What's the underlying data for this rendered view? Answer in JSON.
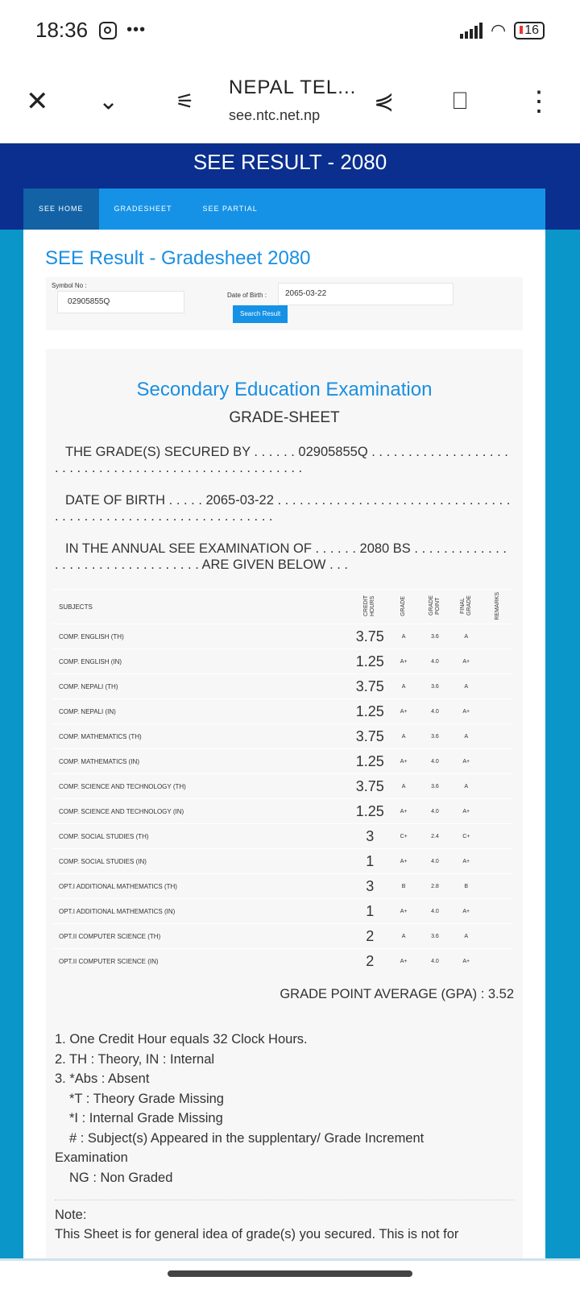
{
  "status_bar": {
    "time": "18:36",
    "battery": "16"
  },
  "browser": {
    "title": "NEPAL TEL...",
    "url": "see.ntc.net.np"
  },
  "site": {
    "title": "SEE RESULT - 2080",
    "nav": [
      "SEE HOME",
      "GRADESHEET",
      "SEE PARTIAL"
    ]
  },
  "page_title": "SEE Result - Gradesheet 2080",
  "form": {
    "symbol_label": "Symbol No :",
    "symbol_value": "02905855Q",
    "dob_label": "Date of Birth :",
    "dob_value": "2065-03-22",
    "search_label": "Search Result"
  },
  "sheet": {
    "heading": "Secondary Education Examination",
    "subheading": "GRADE-SHEET",
    "line1": "THE GRADE(S) SECURED BY . . . . . . 02905855Q . . . . . . . . . . . . . . . . . . . . . . . . . . . . . . . . . . . . . . . . . . . . . . . . . . . . .",
    "line2": "DATE OF BIRTH . . . . . 2065-03-22 . . . . . . . . . . . . . . . . . . . . . . . . . . . . . . . . . . . . . . . . . . . . . . . . . . . . . . . . . . . . . .",
    "line3": "IN THE ANNUAL SEE EXAMINATION OF . . . . . . 2080 BS . . . . . . . . . . . . . . . . . . . . . . . . . . . . . . . . . ARE GIVEN BELOW . . .",
    "columns": [
      "SUBJECTS",
      "CREDIT HOURS",
      "GRADE",
      "GRADE POINT",
      "FINAL GRADE",
      "REMARKS"
    ],
    "rows": [
      [
        "COMP. ENGLISH (TH)",
        "3.75",
        "A",
        "3.6",
        "A",
        ""
      ],
      [
        "COMP. ENGLISH (IN)",
        "1.25",
        "A+",
        "4.0",
        "A+",
        ""
      ],
      [
        "COMP. NEPALI (TH)",
        "3.75",
        "A",
        "3.6",
        "A",
        ""
      ],
      [
        "COMP. NEPALI (IN)",
        "1.25",
        "A+",
        "4.0",
        "A+",
        ""
      ],
      [
        "COMP. MATHEMATICS (TH)",
        "3.75",
        "A",
        "3.6",
        "A",
        ""
      ],
      [
        "COMP. MATHEMATICS (IN)",
        "1.25",
        "A+",
        "4.0",
        "A+",
        ""
      ],
      [
        "COMP. SCIENCE AND TECHNOLOGY (TH)",
        "3.75",
        "A",
        "3.6",
        "A",
        ""
      ],
      [
        "COMP. SCIENCE AND TECHNOLOGY (IN)",
        "1.25",
        "A+",
        "4.0",
        "A+",
        ""
      ],
      [
        "COMP. SOCIAL STUDIES (TH)",
        "3",
        "C+",
        "2.4",
        "C+",
        ""
      ],
      [
        "COMP. SOCIAL STUDIES (IN)",
        "1",
        "A+",
        "4.0",
        "A+",
        ""
      ],
      [
        "OPT.I ADDITIONAL MATHEMATICS (TH)",
        "3",
        "B",
        "2.8",
        "B",
        ""
      ],
      [
        "OPT.I ADDITIONAL MATHEMATICS (IN)",
        "1",
        "A+",
        "4.0",
        "A+",
        ""
      ],
      [
        "OPT.II COMPUTER SCIENCE (TH)",
        "2",
        "A",
        "3.6",
        "A",
        ""
      ],
      [
        "OPT.II COMPUTER SCIENCE (IN)",
        "2",
        "A+",
        "4.0",
        "A+",
        ""
      ]
    ],
    "gpa": "GRADE POINT AVERAGE (GPA) : 3.52",
    "notes": [
      "1. One Credit Hour equals 32 Clock Hours.",
      "2. TH : Theory, IN : Internal",
      "3. *Abs : Absent",
      "*T : Theory Grade Missing",
      "*I : Internal Grade Missing",
      "# : Subject(s) Appeared in the supplentary/ Grade Increment",
      "Examination",
      "NG : Non Graded"
    ],
    "note_title": "Note:",
    "note_text": "This Sheet is for general idea of grade(s) you secured. This is not for"
  }
}
